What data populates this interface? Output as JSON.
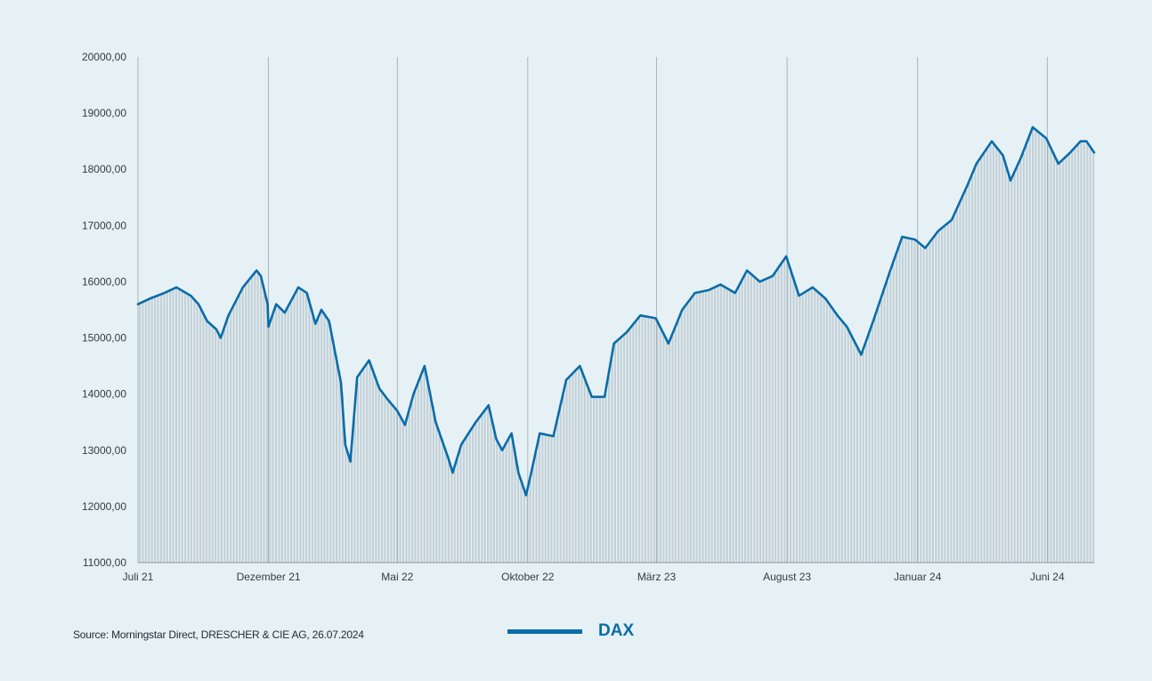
{
  "chart_data": {
    "type": "line",
    "title": "",
    "xlabel": "",
    "ylabel": "",
    "ylim": [
      11000,
      20000
    ],
    "y_ticks": [
      "20000,00",
      "19000,00",
      "18000,00",
      "17000,00",
      "16000,00",
      "15000,00",
      "14000,00",
      "13000,00",
      "12000,00",
      "11000,00"
    ],
    "x_ticks": [
      "Juli 21",
      "Dezember 21",
      "Mai 22",
      "Oktober 22",
      "März 23",
      "August 23",
      "Januar 24",
      "Juni 24"
    ],
    "grid": "vertical lines at month boundaries",
    "fill_under_line": true,
    "legend": "bottom-center",
    "colors": {
      "line": "#0a6ca8",
      "fill": "#c3d2d8",
      "background": "#e6f1f6"
    },
    "series": [
      {
        "name": "DAX",
        "x": [
          "2021-07-01",
          "2021-07-15",
          "2021-08-01",
          "2021-08-15",
          "2021-09-01",
          "2021-09-10",
          "2021-09-20",
          "2021-10-01",
          "2021-10-06",
          "2021-10-15",
          "2021-11-01",
          "2021-11-17",
          "2021-11-22",
          "2021-11-30",
          "2021-12-01",
          "2021-12-10",
          "2021-12-20",
          "2022-01-05",
          "2022-01-15",
          "2022-01-25",
          "2022-02-01",
          "2022-02-10",
          "2022-02-24",
          "2022-03-01",
          "2022-03-07",
          "2022-03-15",
          "2022-03-29",
          "2022-04-10",
          "2022-04-20",
          "2022-05-01",
          "2022-05-10",
          "2022-05-20",
          "2022-06-02",
          "2022-06-15",
          "2022-06-30",
          "2022-07-05",
          "2022-07-15",
          "2022-08-01",
          "2022-08-16",
          "2022-08-25",
          "2022-09-01",
          "2022-09-12",
          "2022-09-20",
          "2022-09-29",
          "2022-10-05",
          "2022-10-15",
          "2022-10-31",
          "2022-11-15",
          "2022-12-01",
          "2022-12-15",
          "2022-12-30",
          "2023-01-10",
          "2023-01-25",
          "2023-02-10",
          "2023-02-28",
          "2023-03-15",
          "2023-03-31",
          "2023-04-15",
          "2023-05-01",
          "2023-05-15",
          "2023-06-01",
          "2023-06-15",
          "2023-06-30",
          "2023-07-15",
          "2023-07-31",
          "2023-08-15",
          "2023-08-31",
          "2023-09-15",
          "2023-09-29",
          "2023-10-10",
          "2023-10-27",
          "2023-11-10",
          "2023-11-30",
          "2023-12-14",
          "2023-12-29",
          "2024-01-10",
          "2024-01-25",
          "2024-02-10",
          "2024-02-28",
          "2024-03-10",
          "2024-03-28",
          "2024-04-10",
          "2024-04-19",
          "2024-05-01",
          "2024-05-15",
          "2024-05-31",
          "2024-06-14",
          "2024-06-28",
          "2024-07-10",
          "2024-07-17",
          "2024-07-26"
        ],
        "values": [
          15600,
          15700,
          15800,
          15900,
          15750,
          15600,
          15300,
          15150,
          15000,
          15400,
          15900,
          16200,
          16100,
          15600,
          15200,
          15600,
          15450,
          15900,
          15800,
          15250,
          15500,
          15300,
          14200,
          13100,
          12800,
          14300,
          14600,
          14100,
          13900,
          13700,
          13450,
          14000,
          14500,
          13500,
          12850,
          12600,
          13100,
          13500,
          13800,
          13200,
          13000,
          13300,
          12600,
          12200,
          12600,
          13300,
          13250,
          14250,
          14500,
          13950,
          13950,
          14900,
          15100,
          15400,
          15350,
          14900,
          15500,
          15800,
          15850,
          15950,
          15800,
          16200,
          16000,
          16100,
          16450,
          15750,
          15900,
          15700,
          15400,
          15200,
          14700,
          15300,
          16200,
          16800,
          16750,
          16600,
          16900,
          17100,
          17700,
          18100,
          18500,
          18250,
          17800,
          18200,
          18750,
          18550,
          18100,
          18300,
          18500,
          18500,
          18300
        ]
      }
    ]
  },
  "source_note": "Source: Morningstar Direct, DRESCHER & CIE AG, 26.07.2024",
  "legend": {
    "label": "DAX"
  }
}
